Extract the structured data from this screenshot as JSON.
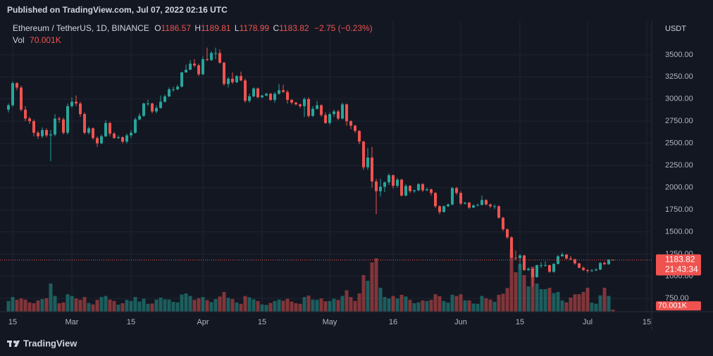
{
  "published": "Published on TradingView.com, Jul 07, 2022 02:16 UTC",
  "brand": "TradingView",
  "chart_data": {
    "type": "candlestick",
    "title": "Ethereum / TetherUS, 1D, BINANCE",
    "ohlc_prefixes": [
      "O",
      "H",
      "L",
      "C"
    ],
    "change": "−2.75 (−0.23%)",
    "volume_name": "Vol",
    "last_volume_label": "70.001K",
    "currency": "USDT",
    "countdown": "21:43:34",
    "up_color": "#26a69a",
    "down_color": "#ef5350",
    "grid": true,
    "x": [
      "2022-02-14",
      "2022-02-15",
      "2022-02-16",
      "2022-02-17",
      "2022-02-18",
      "2022-02-19",
      "2022-02-20",
      "2022-02-21",
      "2022-02-22",
      "2022-02-23",
      "2022-02-24",
      "2022-02-25",
      "2022-02-26",
      "2022-02-27",
      "2022-02-28",
      "2022-03-01",
      "2022-03-02",
      "2022-03-03",
      "2022-03-04",
      "2022-03-05",
      "2022-03-06",
      "2022-03-07",
      "2022-03-08",
      "2022-03-09",
      "2022-03-10",
      "2022-03-11",
      "2022-03-12",
      "2022-03-13",
      "2022-03-14",
      "2022-03-15",
      "2022-03-16",
      "2022-03-17",
      "2022-03-18",
      "2022-03-19",
      "2022-03-20",
      "2022-03-21",
      "2022-03-22",
      "2022-03-23",
      "2022-03-24",
      "2022-03-25",
      "2022-03-26",
      "2022-03-27",
      "2022-03-28",
      "2022-03-29",
      "2022-03-30",
      "2022-03-31",
      "2022-04-01",
      "2022-04-02",
      "2022-04-03",
      "2022-04-04",
      "2022-04-05",
      "2022-04-06",
      "2022-04-07",
      "2022-04-08",
      "2022-04-09",
      "2022-04-10",
      "2022-04-11",
      "2022-04-12",
      "2022-04-13",
      "2022-04-14",
      "2022-04-15",
      "2022-04-16",
      "2022-04-17",
      "2022-04-18",
      "2022-04-19",
      "2022-04-20",
      "2022-04-21",
      "2022-04-22",
      "2022-04-23",
      "2022-04-24",
      "2022-04-25",
      "2022-04-26",
      "2022-04-27",
      "2022-04-28",
      "2022-04-29",
      "2022-04-30",
      "2022-05-01",
      "2022-05-02",
      "2022-05-03",
      "2022-05-04",
      "2022-05-05",
      "2022-05-06",
      "2022-05-07",
      "2022-05-08",
      "2022-05-09",
      "2022-05-10",
      "2022-05-11",
      "2022-05-12",
      "2022-05-13",
      "2022-05-14",
      "2022-05-15",
      "2022-05-16",
      "2022-05-17",
      "2022-05-18",
      "2022-05-19",
      "2022-05-20",
      "2022-05-21",
      "2022-05-22",
      "2022-05-23",
      "2022-05-24",
      "2022-05-25",
      "2022-05-26",
      "2022-05-27",
      "2022-05-28",
      "2022-05-29",
      "2022-05-30",
      "2022-05-31",
      "2022-06-01",
      "2022-06-02",
      "2022-06-03",
      "2022-06-04",
      "2022-06-05",
      "2022-06-06",
      "2022-06-07",
      "2022-06-08",
      "2022-06-09",
      "2022-06-10",
      "2022-06-11",
      "2022-06-12",
      "2022-06-13",
      "2022-06-14",
      "2022-06-15",
      "2022-06-16",
      "2022-06-17",
      "2022-06-18",
      "2022-06-19",
      "2022-06-20",
      "2022-06-21",
      "2022-06-22",
      "2022-06-23",
      "2022-06-24",
      "2022-06-25",
      "2022-06-26",
      "2022-06-27",
      "2022-06-28",
      "2022-06-29",
      "2022-06-30",
      "2022-07-01",
      "2022-07-02",
      "2022-07-03",
      "2022-07-04",
      "2022-07-05",
      "2022-07-06",
      "2022-07-07"
    ],
    "open": [
      2880,
      2930,
      3180,
      3130,
      2880,
      2780,
      2750,
      2620,
      2580,
      2650,
      2590,
      2600,
      2780,
      2770,
      2620,
      2920,
      2970,
      2950,
      2830,
      2620,
      2670,
      2560,
      2500,
      2580,
      2730,
      2610,
      2560,
      2570,
      2520,
      2590,
      2620,
      2770,
      2810,
      2950,
      2950,
      2860,
      2900,
      2970,
      3030,
      3110,
      3110,
      3140,
      3300,
      3330,
      3400,
      3380,
      3280,
      3450,
      3440,
      3520,
      3520,
      3410,
      3170,
      3230,
      3190,
      3260,
      3210,
      2980,
      3030,
      3120,
      3020,
      3040,
      3060,
      2990,
      3060,
      3100,
      3080,
      2990,
      2960,
      2940,
      2920,
      3000,
      2810,
      2890,
      2930,
      2820,
      2730,
      2830,
      2860,
      2780,
      2940,
      2750,
      2700,
      2640,
      2520,
      2230,
      2340,
      2070,
      1960,
      2010,
      2060,
      2140,
      2020,
      2090,
      1910,
      2020,
      1960,
      1970,
      2040,
      1970,
      1980,
      1940,
      1790,
      1725,
      1790,
      1810,
      1995,
      1940,
      1820,
      1830,
      1775,
      1800,
      1805,
      1860,
      1810,
      1790,
      1790,
      1660,
      1530,
      1440,
      1210,
      1205,
      1235,
      1070,
      1085,
      990,
      1125,
      1125,
      1125,
      1050,
      1140,
      1225,
      1245,
      1200,
      1190,
      1145,
      1095,
      1070,
      1060,
      1065,
      1075,
      1150,
      1135,
      1186.57
    ],
    "high": [
      2950,
      3200,
      3190,
      3150,
      2920,
      2800,
      2770,
      2640,
      2680,
      2670,
      2650,
      2830,
      2800,
      2790,
      2950,
      3020,
      3040,
      2970,
      2850,
      2690,
      2680,
      2580,
      2600,
      2760,
      2740,
      2630,
      2590,
      2580,
      2610,
      2650,
      2790,
      2840,
      2960,
      2990,
      2960,
      2930,
      3040,
      3050,
      3130,
      3140,
      3160,
      3310,
      3390,
      3440,
      3450,
      3400,
      3480,
      3580,
      3540,
      3580,
      3560,
      3420,
      3250,
      3300,
      3270,
      3310,
      3230,
      3060,
      3130,
      3130,
      3050,
      3070,
      3070,
      3080,
      3170,
      3160,
      3100,
      3000,
      2970,
      2950,
      3020,
      3020,
      2920,
      2980,
      2940,
      2850,
      2850,
      2880,
      2880,
      2960,
      2950,
      2760,
      2710,
      2650,
      2530,
      2450,
      2460,
      2100,
      2100,
      2070,
      2160,
      2150,
      2110,
      2100,
      2040,
      2030,
      1980,
      2050,
      2050,
      2000,
      1990,
      1950,
      1800,
      1800,
      1820,
      2010,
      2010,
      1960,
      1840,
      1840,
      1810,
      1820,
      1910,
      1870,
      1820,
      1810,
      1800,
      1670,
      1540,
      1450,
      1290,
      1250,
      1240,
      1100,
      1090,
      1130,
      1160,
      1170,
      1130,
      1150,
      1240,
      1270,
      1250,
      1230,
      1200,
      1150,
      1110,
      1080,
      1080,
      1090,
      1160,
      1165,
      1195,
      1189.81
    ],
    "low": [
      2850,
      2910,
      3100,
      2860,
      2750,
      2720,
      2580,
      2550,
      2560,
      2570,
      2300,
      2580,
      2730,
      2600,
      2600,
      2900,
      2920,
      2800,
      2600,
      2600,
      2540,
      2460,
      2490,
      2570,
      2580,
      2550,
      2550,
      2500,
      2500,
      2560,
      2610,
      2760,
      2800,
      2920,
      2840,
      2840,
      2890,
      2960,
      3020,
      3080,
      3100,
      3130,
      3300,
      3330,
      3360,
      3260,
      3270,
      3430,
      3430,
      3450,
      3400,
      3150,
      3130,
      3170,
      3180,
      3200,
      2960,
      2960,
      3020,
      3010,
      3010,
      3030,
      2980,
      2960,
      3050,
      3070,
      2950,
      2940,
      2930,
      2900,
      2800,
      2790,
      2800,
      2880,
      2800,
      2720,
      2710,
      2800,
      2760,
      2770,
      2700,
      2660,
      2620,
      2490,
      2200,
      2200,
      2000,
      1700,
      1900,
      1950,
      2030,
      1990,
      2000,
      1900,
      1900,
      1940,
      1940,
      1960,
      1950,
      1960,
      1910,
      1770,
      1700,
      1720,
      1780,
      1800,
      1920,
      1800,
      1810,
      1760,
      1770,
      1790,
      1800,
      1800,
      1770,
      1760,
      1650,
      1510,
      1420,
      1200,
      1180,
      1080,
      1060,
      1060,
      880,
      980,
      1090,
      1110,
      1040,
      1040,
      1130,
      1220,
      1190,
      1180,
      1130,
      1090,
      1060,
      1040,
      1050,
      1060,
      1070,
      1130,
      1130,
      1178.99
    ],
    "close": [
      2930,
      3180,
      3130,
      2880,
      2780,
      2750,
      2620,
      2580,
      2650,
      2590,
      2600,
      2780,
      2770,
      2620,
      2920,
      2970,
      2950,
      2830,
      2620,
      2670,
      2560,
      2500,
      2580,
      2730,
      2610,
      2560,
      2570,
      2520,
      2590,
      2620,
      2770,
      2810,
      2950,
      2950,
      2860,
      2900,
      2970,
      3030,
      3110,
      3110,
      3140,
      3300,
      3330,
      3400,
      3380,
      3280,
      3450,
      3440,
      3520,
      3520,
      3410,
      3170,
      3230,
      3190,
      3260,
      3210,
      2980,
      3030,
      3120,
      3020,
      3040,
      3060,
      2990,
      3060,
      3100,
      3080,
      2990,
      2960,
      2940,
      2920,
      3000,
      2810,
      2890,
      2930,
      2820,
      2730,
      2830,
      2860,
      2780,
      2940,
      2750,
      2700,
      2640,
      2520,
      2230,
      2340,
      2070,
      1960,
      2010,
      2060,
      2140,
      2020,
      2090,
      1910,
      2020,
      1960,
      1970,
      2040,
      1970,
      1980,
      1940,
      1790,
      1725,
      1790,
      1810,
      1995,
      1940,
      1820,
      1830,
      1775,
      1800,
      1805,
      1860,
      1810,
      1790,
      1790,
      1660,
      1530,
      1440,
      1210,
      1205,
      1235,
      1070,
      1085,
      990,
      1125,
      1125,
      1125,
      1050,
      1140,
      1225,
      1245,
      1200,
      1190,
      1145,
      1095,
      1070,
      1060,
      1065,
      1075,
      1150,
      1135,
      1186.57,
      1183.82
    ],
    "volume": [
      380,
      520,
      420,
      470,
      430,
      330,
      300,
      400,
      450,
      480,
      1000,
      560,
      300,
      330,
      620,
      560,
      470,
      420,
      520,
      310,
      260,
      420,
      520,
      560,
      430,
      380,
      250,
      300,
      420,
      380,
      520,
      360,
      460,
      280,
      290,
      430,
      500,
      440,
      430,
      350,
      330,
      610,
      650,
      560,
      420,
      480,
      520,
      410,
      340,
      450,
      540,
      700,
      490,
      450,
      330,
      280,
      560,
      510,
      440,
      380,
      260,
      240,
      310,
      380,
      430,
      390,
      460,
      360,
      300,
      280,
      520,
      570,
      430,
      420,
      470,
      370,
      380,
      460,
      420,
      560,
      760,
      520,
      380,
      650,
      1300,
      1100,
      1750,
      1900,
      850,
      520,
      470,
      560,
      470,
      600,
      540,
      420,
      300,
      330,
      400,
      380,
      420,
      620,
      550,
      380,
      320,
      600,
      560,
      620,
      400,
      400,
      290,
      280,
      560,
      480,
      430,
      350,
      600,
      640,
      840,
      2200,
      1400,
      1700,
      1300,
      900,
      1600,
      1000,
      800,
      800,
      850,
      660,
      700,
      400,
      330,
      500,
      620,
      620,
      700,
      850,
      320,
      280,
      580,
      850,
      560,
      70.001
    ],
    "ylim": [
      600,
      3880
    ],
    "yticks": [
      {
        "value": 750,
        "label": "750.00"
      },
      {
        "value": 1000,
        "label": "1000.00"
      },
      {
        "value": 1250,
        "label": "1250.00"
      },
      {
        "value": 1500,
        "label": "1500.00"
      },
      {
        "value": 1750,
        "label": "1750.00"
      },
      {
        "value": 2000,
        "label": "2000.00"
      },
      {
        "value": 2250,
        "label": "2250.00"
      },
      {
        "value": 2500,
        "label": "2500.00"
      },
      {
        "value": 2750,
        "label": "2750.00"
      },
      {
        "value": 3000,
        "label": "3000.00"
      },
      {
        "value": 3250,
        "label": "3250.00"
      },
      {
        "value": 3500,
        "label": "3500.00"
      }
    ],
    "xticks": [
      {
        "value": "2022-02-15",
        "label": "15"
      },
      {
        "value": "2022-03-01",
        "label": "Mar"
      },
      {
        "value": "2022-03-15",
        "label": "15"
      },
      {
        "value": "2022-04-01",
        "label": "Apr"
      },
      {
        "value": "2022-04-15",
        "label": "15"
      },
      {
        "value": "2022-05-01",
        "label": "May"
      },
      {
        "value": "2022-05-16",
        "label": "16"
      },
      {
        "value": "2022-06-01",
        "label": "Jun"
      },
      {
        "value": "2022-06-15",
        "label": "15"
      },
      {
        "value": "2022-07-01",
        "label": "Jul"
      },
      {
        "value": "2022-07-15",
        "label": "15"
      }
    ]
  }
}
